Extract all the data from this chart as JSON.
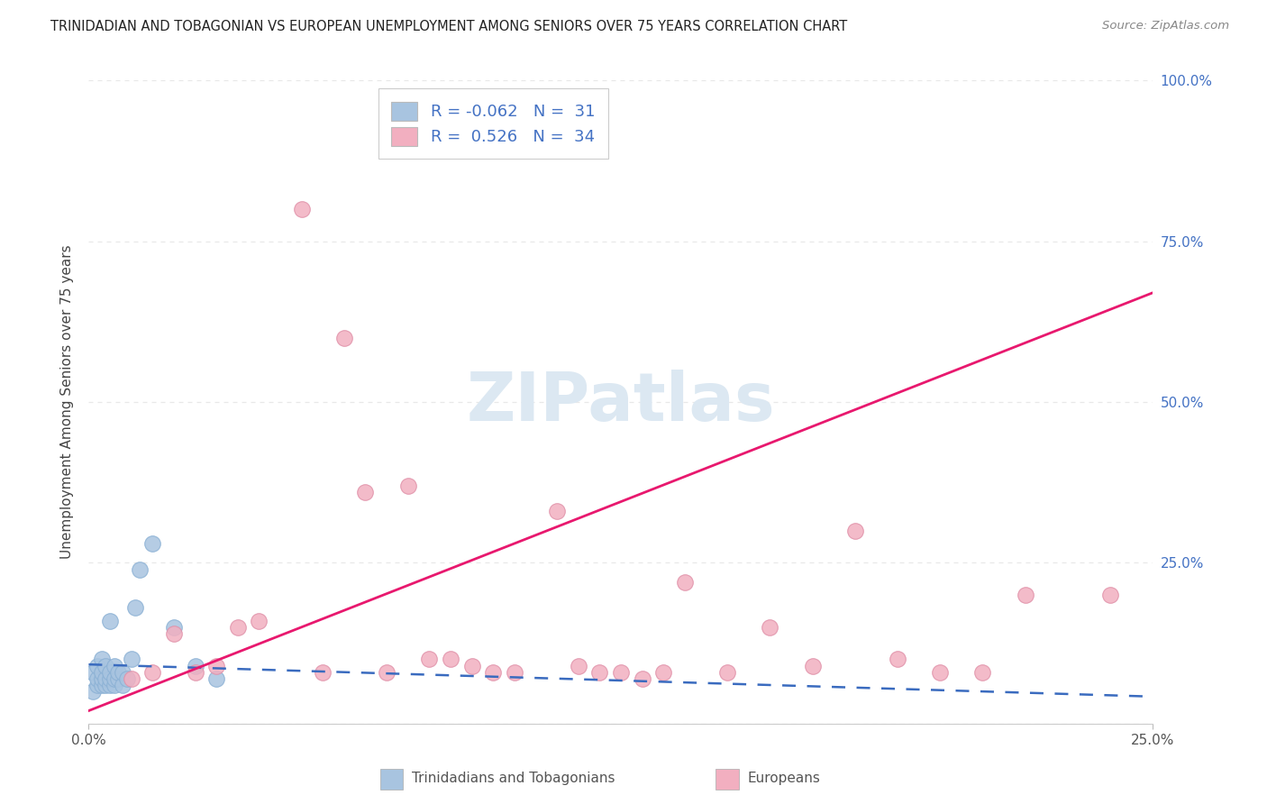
{
  "title": "TRINIDADIAN AND TOBAGONIAN VS EUROPEAN UNEMPLOYMENT AMONG SENIORS OVER 75 YEARS CORRELATION CHART",
  "source": "Source: ZipAtlas.com",
  "ylabel": "Unemployment Among Seniors over 75 years",
  "legend_blue_r": "-0.062",
  "legend_blue_n": "31",
  "legend_pink_r": "0.526",
  "legend_pink_n": "34",
  "blue_scatter_x": [
    0.001,
    0.001,
    0.002,
    0.002,
    0.002,
    0.003,
    0.003,
    0.003,
    0.003,
    0.004,
    0.004,
    0.004,
    0.005,
    0.005,
    0.005,
    0.005,
    0.006,
    0.006,
    0.006,
    0.007,
    0.007,
    0.008,
    0.008,
    0.009,
    0.01,
    0.011,
    0.012,
    0.015,
    0.02,
    0.025,
    0.03
  ],
  "blue_scatter_y": [
    0.05,
    0.08,
    0.06,
    0.07,
    0.09,
    0.06,
    0.07,
    0.08,
    0.1,
    0.06,
    0.07,
    0.09,
    0.06,
    0.07,
    0.08,
    0.16,
    0.06,
    0.07,
    0.09,
    0.07,
    0.08,
    0.06,
    0.08,
    0.07,
    0.1,
    0.18,
    0.24,
    0.28,
    0.15,
    0.09,
    0.07
  ],
  "pink_scatter_x": [
    0.01,
    0.015,
    0.02,
    0.025,
    0.03,
    0.035,
    0.04,
    0.05,
    0.055,
    0.06,
    0.065,
    0.07,
    0.075,
    0.08,
    0.085,
    0.09,
    0.095,
    0.1,
    0.11,
    0.115,
    0.12,
    0.125,
    0.13,
    0.135,
    0.14,
    0.15,
    0.16,
    0.17,
    0.18,
    0.19,
    0.2,
    0.21,
    0.22,
    0.24
  ],
  "pink_scatter_y": [
    0.07,
    0.08,
    0.14,
    0.08,
    0.09,
    0.15,
    0.16,
    0.8,
    0.08,
    0.6,
    0.36,
    0.08,
    0.37,
    0.1,
    0.1,
    0.09,
    0.08,
    0.08,
    0.33,
    0.09,
    0.08,
    0.08,
    0.07,
    0.08,
    0.22,
    0.08,
    0.15,
    0.09,
    0.3,
    0.1,
    0.08,
    0.08,
    0.2,
    0.2
  ],
  "blue_color": "#a8c4e0",
  "pink_color": "#f2afc0",
  "blue_line_color": "#3a6bbf",
  "pink_line_color": "#e8186e",
  "grid_color": "#e8e8e8",
  "bg_color": "#ffffff",
  "watermark": "ZIPatlas",
  "watermark_color": "#dce8f2",
  "blue_line_intercept": 0.092,
  "blue_line_slope": -0.2,
  "pink_line_intercept": 0.02,
  "pink_line_slope": 2.6
}
